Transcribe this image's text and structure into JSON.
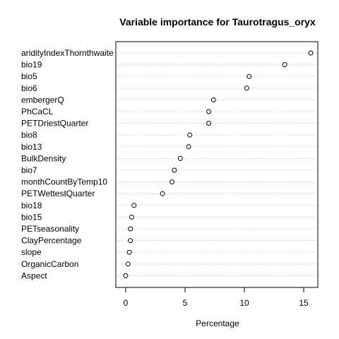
{
  "chart_data": {
    "type": "scatter",
    "title": "Variable importance for Taurotragus_oryx",
    "xlabel": "Percentage",
    "ylabel": "",
    "xlim": [
      -0.8,
      16.2
    ],
    "xticks": [
      0,
      5,
      10,
      15
    ],
    "grid": "dotted horizontal lines per variable",
    "categories": [
      "aridityIndexThornthwaite",
      "bio19",
      "bio5",
      "bio6",
      "embergerQ",
      "PhCaCL",
      "PETDriestQuarter",
      "bio8",
      "bio13",
      "BulkDensity",
      "bio7",
      "monthCountByTemp10",
      "PETWettestQuarter",
      "bio18",
      "bio15",
      "PETseasonality",
      "ClayPercentage",
      "slope",
      "OrganicCarbon",
      "Aspect"
    ],
    "values": [
      15.6,
      13.4,
      10.4,
      10.2,
      7.4,
      7.0,
      7.0,
      5.4,
      5.3,
      4.6,
      4.1,
      3.9,
      3.1,
      0.7,
      0.5,
      0.4,
      0.4,
      0.3,
      0.2,
      0.0
    ]
  }
}
